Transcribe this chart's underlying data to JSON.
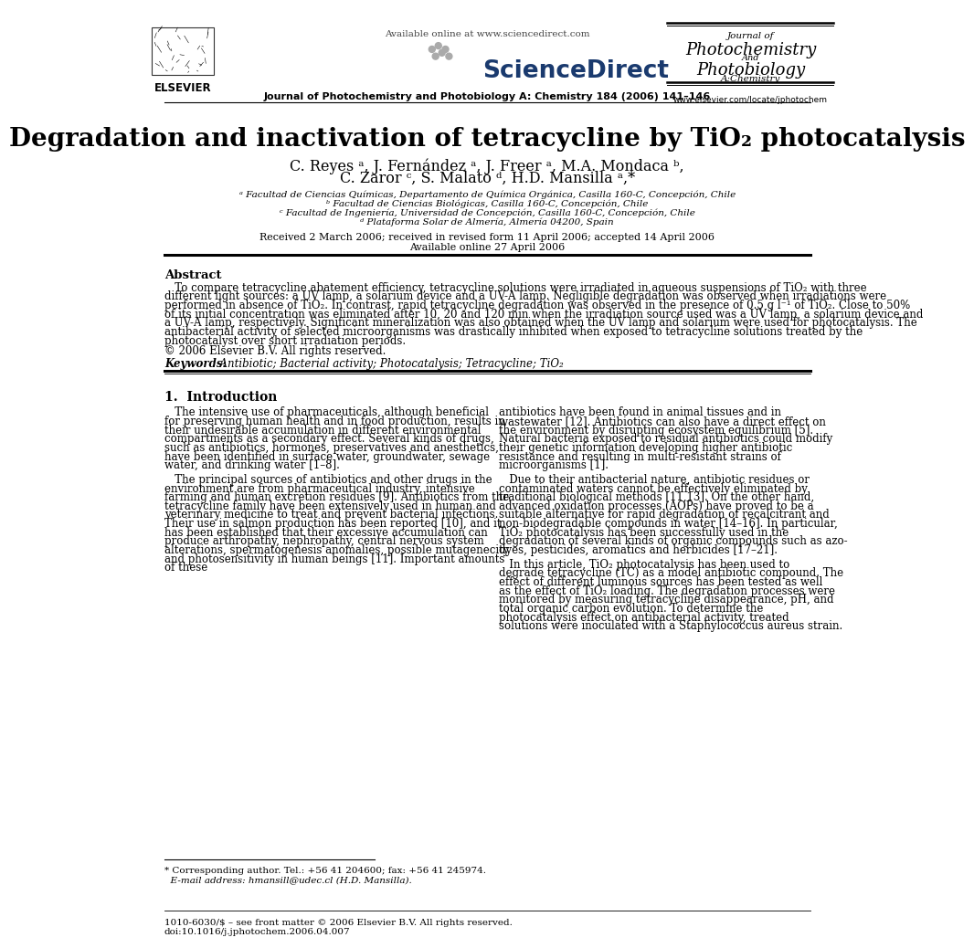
{
  "bg_color": "#ffffff",
  "title_paper": "Degradation and inactivation of tetracycline by TiO₂ photocatalysis",
  "authors_line1": "C. Reyes ᵃ, J. Fernández ᵃ, J. Freer ᵃ, M.A. Mondaca ᵇ,",
  "authors_line2": "C. Zaror ᶜ, S. Malato ᵈ, H.D. Mansilla ᵃ,*",
  "affil_a": "ᵃ Facultad de Ciencias Químicas, Departamento de Química Orgánica, Casilla 160-C, Concepción, Chile",
  "affil_b": "ᵇ Facultad de Ciencias Biológicas, Casilla 160-C, Concepción, Chile",
  "affil_c": "ᶜ Facultad de Ingeniería, Universidad de Concepción, Casilla 160-C, Concepción, Chile",
  "affil_d": "ᵈ Plataforma Solar de Almería, Almería 04200, Spain",
  "received": "Received 2 March 2006; received in revised form 11 April 2006; accepted 14 April 2006",
  "available": "Available online 27 April 2006",
  "header_journal_line": "Journal of Photochemistry and Photobiology A: Chemistry 184 (2006) 141–146",
  "header_available": "Available online at www.sciencedirect.com",
  "journal_name_line1": "Journal of",
  "journal_name_line2": "Photochemistry",
  "journal_name_line3": "And",
  "journal_name_line4": "Photobiology",
  "journal_name_line5": "A:Chemistry",
  "elsevier_text": "ELSEVIER",
  "website": "www.elsevier.com/locate/jphotochem",
  "abstract_title": "Abstract",
  "abstract_body1": "   To compare tetracycline abatement efficiency, tetracycline solutions were irradiated in aqueous suspensions of TiO₂ with three different light sources: a UV lamp, a solarium device and a UV-A lamp. Negligible degradation was observed when irradiations were performed in absence of TiO₂. In contrast, rapid tetracycline degradation was observed in the presence of 0.5 g l⁻¹ of TiO₂. Close to 50% of its initial concentration was eliminated after 10, 20 and 120 min when the irradiation source used was a UV lamp, a solarium device and a UV-A lamp, respectively. Significant mineralization was also obtained when the UV lamp and solarium were used for photocatalysis. The antibacterial activity of selected microorganisms was drastically inhibited when exposed to tetracycline solutions treated by the photocatalyst over short irradiation periods.",
  "abstract_body2": "© 2006 Elsevier B.V. All rights reserved.",
  "keywords_label": "Keywords:",
  "keywords_text": "  Antibiotic; Bacterial activity; Photocatalysis; Tetracycline; TiO₂",
  "section1_title": "1.  Introduction",
  "intro_col1_para1": "   The intensive use of pharmaceuticals, although beneficial for preserving human health and in food production, results in their undesirable accumulation in different environmental compartments as a secondary effect. Several kinds of drugs, such as antibiotics, hormones, preservatives and anesthetics, have been identified in surface water, groundwater, sewage water, and drinking water [1–8].",
  "intro_col1_para2": "   The principal sources of antibiotics and other drugs in the environment are from pharmaceutical industry, intensive farming and human excretion residues [9]. Antibiotics from the tetracycline family have been extensively used in human and veterinary medicine to treat and prevent bacterial infections. Their use in salmon production has been reported [10], and it has been established that their excessive accumulation can produce arthropathy, nephropathy, central nervous system alterations, spermatogenesis anomalies, possible mutagenecity and photosensitivity in human beings [11]. Important amounts of these",
  "intro_col2_para1": "antibiotics have been found in animal tissues and in wastewater [12]. Antibiotics can also have a direct effect on the environment by disrupting ecosystem equilibrium [5]. Natural bacteria exposed to residual antibiotics could modify their genetic information developing higher antibiotic resistance and resulting in multi-resistant strains of microorganisms [1].",
  "intro_col2_para2": "   Due to their antibacterial nature, antibiotic residues or contaminated waters cannot be effectively eliminated by traditional biological methods [11,13]. On the other hand, advanced oxidation processes (AOPs) have proved to be a suitable alternative for rapid degradation of recalcitrant and non-biodegradable compounds in water [14–16]. In particular, TiO₂ photocatalysis has been successfully used in the degradation of several kinds of organic compounds such as azo-dyes, pesticides, aromatics and herbicides [17–21].",
  "intro_col2_para3": "   In this article, TiO₂ photocatalysis has been used to degrade tetracycline (TC) as a model antibiotic compound. The effect of different luminous sources has been tested as well as the effect of TiO₂ loading. The degradation processes were monitored by measuring tetracycline disappearance, pH, and total organic carbon evolution. To determine the photocatalysis effect on antibacterial activity, treated solutions were inoculated with a Staphylococcus aureus strain.",
  "footer_left": "* Corresponding author. Tel.: +56 41 204600; fax: +56 41 245974.",
  "footer_email": "  E-mail address: hmansill@udec.cl (H.D. Mansilla).",
  "footer_issn": "1010-6030/$ – see front matter © 2006 Elsevier B.V. All rights reserved.",
  "footer_doi": "doi:10.1016/j.jphotochem.2006.04.007",
  "sciencedirect_text": "ScienceDirect"
}
